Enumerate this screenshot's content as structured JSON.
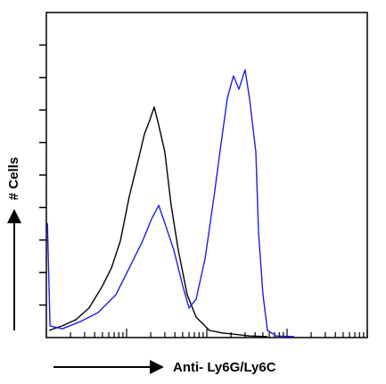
{
  "chart_data": {
    "type": "line",
    "x_label": "Anti- Ly6G/Ly6C",
    "y_label": "# Cells",
    "xscale": "log",
    "xlim": [
      1,
      10000
    ],
    "xticks": [
      1,
      2,
      3,
      4,
      5,
      6,
      7,
      8,
      9,
      10,
      20,
      30,
      40,
      50,
      60,
      70,
      80,
      90,
      100,
      200,
      300,
      400,
      500,
      600,
      700,
      800,
      900,
      1000,
      2000,
      3000,
      4000,
      5000,
      6000,
      7000,
      8000,
      9000,
      10000
    ],
    "ylim": [
      0,
      10
    ],
    "yticks": [
      1,
      2,
      3,
      4,
      5,
      6,
      7,
      8,
      9
    ],
    "series": [
      {
        "color": "#000000",
        "x": [
          1.08,
          1.58,
          2.33,
          3.41,
          5.01,
          6.47,
          8.36,
          10.8,
          13.9,
          16.7,
          19.4,
          22.1,
          25.1,
          30.0,
          35.9,
          44.1,
          57.0,
          73.6,
          108,
          158,
          341,
          570
        ],
        "values": [
          0.22,
          0.36,
          0.55,
          0.91,
          1.59,
          2.14,
          2.97,
          4.34,
          5.44,
          6.26,
          6.68,
          7.09,
          6.54,
          5.71,
          4.07,
          2.69,
          1.32,
          0.63,
          0.22,
          0.14,
          0.05,
          0.03
        ]
      },
      {
        "color": "#1f1fe0",
        "x": [
          1.03,
          1.11,
          1.58,
          2.64,
          4.41,
          7.36,
          10.8,
          15.8,
          20.5,
          25.1,
          30.0,
          38.8,
          50.1,
          59.9,
          73.6,
          95.0,
          123,
          151,
          180,
          215,
          251,
          300,
          341,
          408,
          441,
          501,
          570,
          736,
          1227
        ],
        "values": [
          3.52,
          0.36,
          0.27,
          0.49,
          0.77,
          1.32,
          2.14,
          2.97,
          3.65,
          4.07,
          3.52,
          2.69,
          1.59,
          0.91,
          1.18,
          2.42,
          4.34,
          5.99,
          7.36,
          8.05,
          7.64,
          8.24,
          7.36,
          5.71,
          3.24,
          1.32,
          0.22,
          0.05,
          0.03
        ]
      }
    ]
  }
}
